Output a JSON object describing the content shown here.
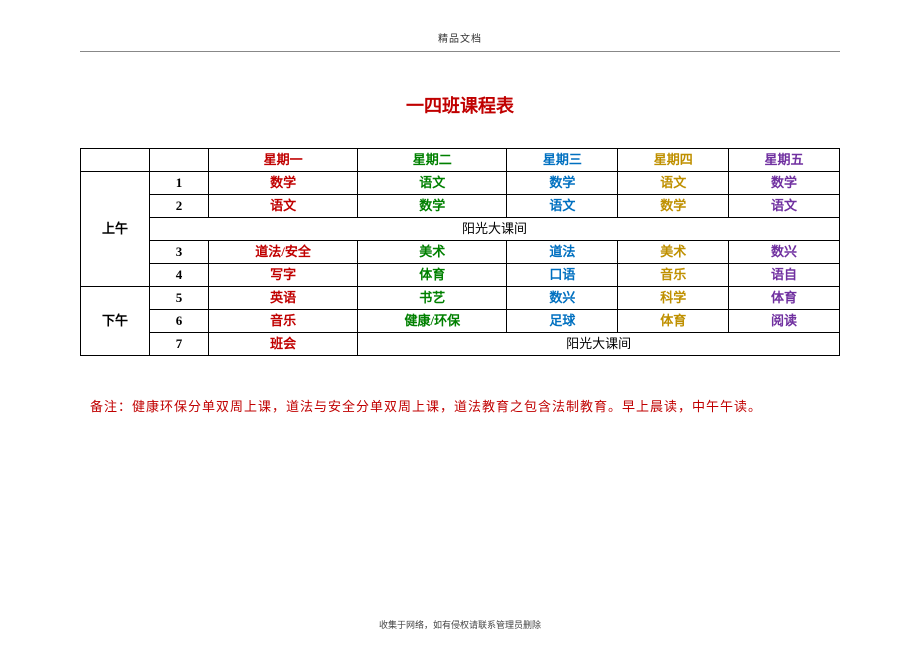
{
  "header_small": "精品文档",
  "title": "一四班课程表",
  "colors": {
    "red": "#c00000",
    "green": "#008000",
    "blue": "#0070c0",
    "gold": "#bf9000",
    "purple": "#7030a0",
    "black": "#000000"
  },
  "days": {
    "mon": "星期一",
    "tue": "星期二",
    "wed": "星期三",
    "thu": "星期四",
    "fri": "星期五"
  },
  "sessions": {
    "am": "上午",
    "pm": "下午"
  },
  "periods": [
    "1",
    "2",
    "3",
    "4",
    "5",
    "6",
    "7"
  ],
  "break_label": "阳光大课间",
  "rows": {
    "r1": {
      "mon": "数学",
      "tue": "语文",
      "wed": "数学",
      "thu": "语文",
      "fri": "数学"
    },
    "r2": {
      "mon": "语文",
      "tue": "数学",
      "wed": "语文",
      "thu": "数学",
      "fri": "语文"
    },
    "r3": {
      "mon": "道法/安全",
      "tue": "美术",
      "wed": "道法",
      "thu": "美术",
      "fri": "数兴"
    },
    "r4": {
      "mon": "写字",
      "tue": "体育",
      "wed": "口语",
      "thu": "音乐",
      "fri": "语自"
    },
    "r5": {
      "mon": "英语",
      "tue": "书艺",
      "wed": "数兴",
      "thu": "科学",
      "fri": "体育"
    },
    "r6": {
      "mon": "音乐",
      "tue": "健康/环保",
      "wed": "足球",
      "thu": "体育",
      "fri": "阅读"
    },
    "r7": {
      "mon": "班会"
    }
  },
  "note": "备注：健康环保分单双周上课，道法与安全分单双周上课，道法教育之包含法制教育。早上晨读，中午午读。",
  "footer_small": "收集于网络，如有侵权请联系管理员删除"
}
